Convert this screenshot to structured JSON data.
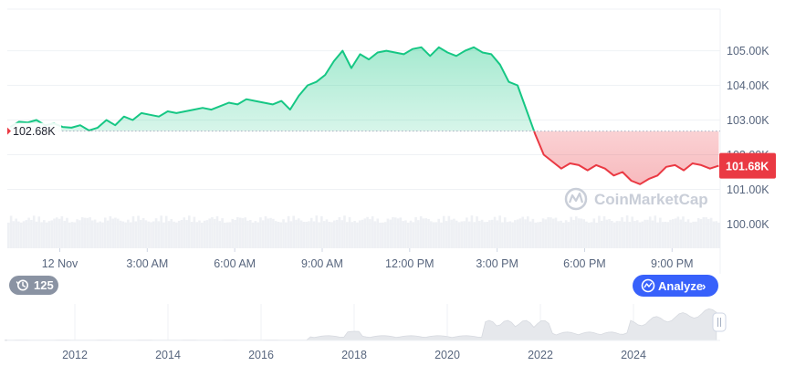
{
  "chart_data": {
    "type": "line",
    "title": "",
    "xlabel": "",
    "ylabel": "",
    "ylim": [
      99300,
      106200
    ],
    "y_ticks": [
      100000,
      101000,
      102000,
      103000,
      104000,
      105000
    ],
    "y_tick_labels": [
      "100.00K",
      "101.00K",
      "102.00K",
      "103.00K",
      "104.00K",
      "105.00K"
    ],
    "x_tick_labels": [
      "12 Nov",
      "3:00 AM",
      "6:00 AM",
      "9:00 AM",
      "12:00 PM",
      "3:00 PM",
      "6:00 PM",
      "9:00 PM"
    ],
    "reference_price": 102680,
    "reference_label": "102.68K",
    "current_price": 101680,
    "current_label": "101.68K",
    "up_color": "#16c784",
    "down_color": "#ea3943",
    "x_hours": [
      -1.7,
      -1.4,
      -1.1,
      -0.8,
      -0.5,
      -0.2,
      0.1,
      0.4,
      0.7,
      1.0,
      1.3,
      1.6,
      1.9,
      2.2,
      2.5,
      2.8,
      3.1,
      3.4,
      3.7,
      4.0,
      4.3,
      4.6,
      4.9,
      5.2,
      5.5,
      5.8,
      6.1,
      6.4,
      6.7,
      7.0,
      7.3,
      7.6,
      7.9,
      8.2,
      8.5,
      8.8,
      9.1,
      9.4,
      9.7,
      10.0,
      10.3,
      10.6,
      10.9,
      11.2,
      11.5,
      11.8,
      12.1,
      12.4,
      12.7,
      13.0,
      13.3,
      13.6,
      13.9,
      14.2,
      14.5,
      14.8,
      15.1,
      15.4,
      15.7,
      16.0,
      16.3,
      16.6,
      16.9,
      17.2,
      17.5,
      17.8,
      18.1,
      18.4,
      18.7,
      19.0,
      19.3,
      19.6,
      19.9,
      20.2,
      20.5,
      20.8,
      21.1,
      21.4,
      21.7,
      22.0,
      22.3,
      22.6
    ],
    "price": [
      102800,
      102950,
      102930,
      103000,
      102850,
      102900,
      102800,
      102780,
      102850,
      102700,
      102780,
      103000,
      102850,
      103100,
      103000,
      103200,
      103150,
      103100,
      103250,
      103200,
      103250,
      103300,
      103350,
      103300,
      103400,
      103500,
      103450,
      103600,
      103550,
      103500,
      103450,
      103550,
      103300,
      103700,
      104000,
      104100,
      104300,
      104700,
      105000,
      104500,
      104900,
      104750,
      104950,
      105000,
      104950,
      104900,
      105050,
      105100,
      104850,
      105100,
      104950,
      104850,
      105000,
      105100,
      104950,
      104900,
      104600,
      104100,
      104000,
      103300,
      102600,
      102000,
      101800,
      101600,
      101750,
      101700,
      101550,
      101700,
      101600,
      101400,
      101500,
      101250,
      101150,
      101300,
      101400,
      101650,
      101700,
      101550,
      101750,
      101700,
      101600,
      101680
    ],
    "volume_bars_count": 280,
    "overview_x_labels": [
      "2012",
      "2014",
      "2016",
      "2018",
      "2020",
      "2022",
      "2024"
    ]
  },
  "ui": {
    "watermark_text": "CoinMarketCap",
    "history_count": "125",
    "analyze_label": "Analyze",
    "analyze_chevron": "›",
    "analyze_color": "#3861fb",
    "history_color": "#8a93a3"
  }
}
